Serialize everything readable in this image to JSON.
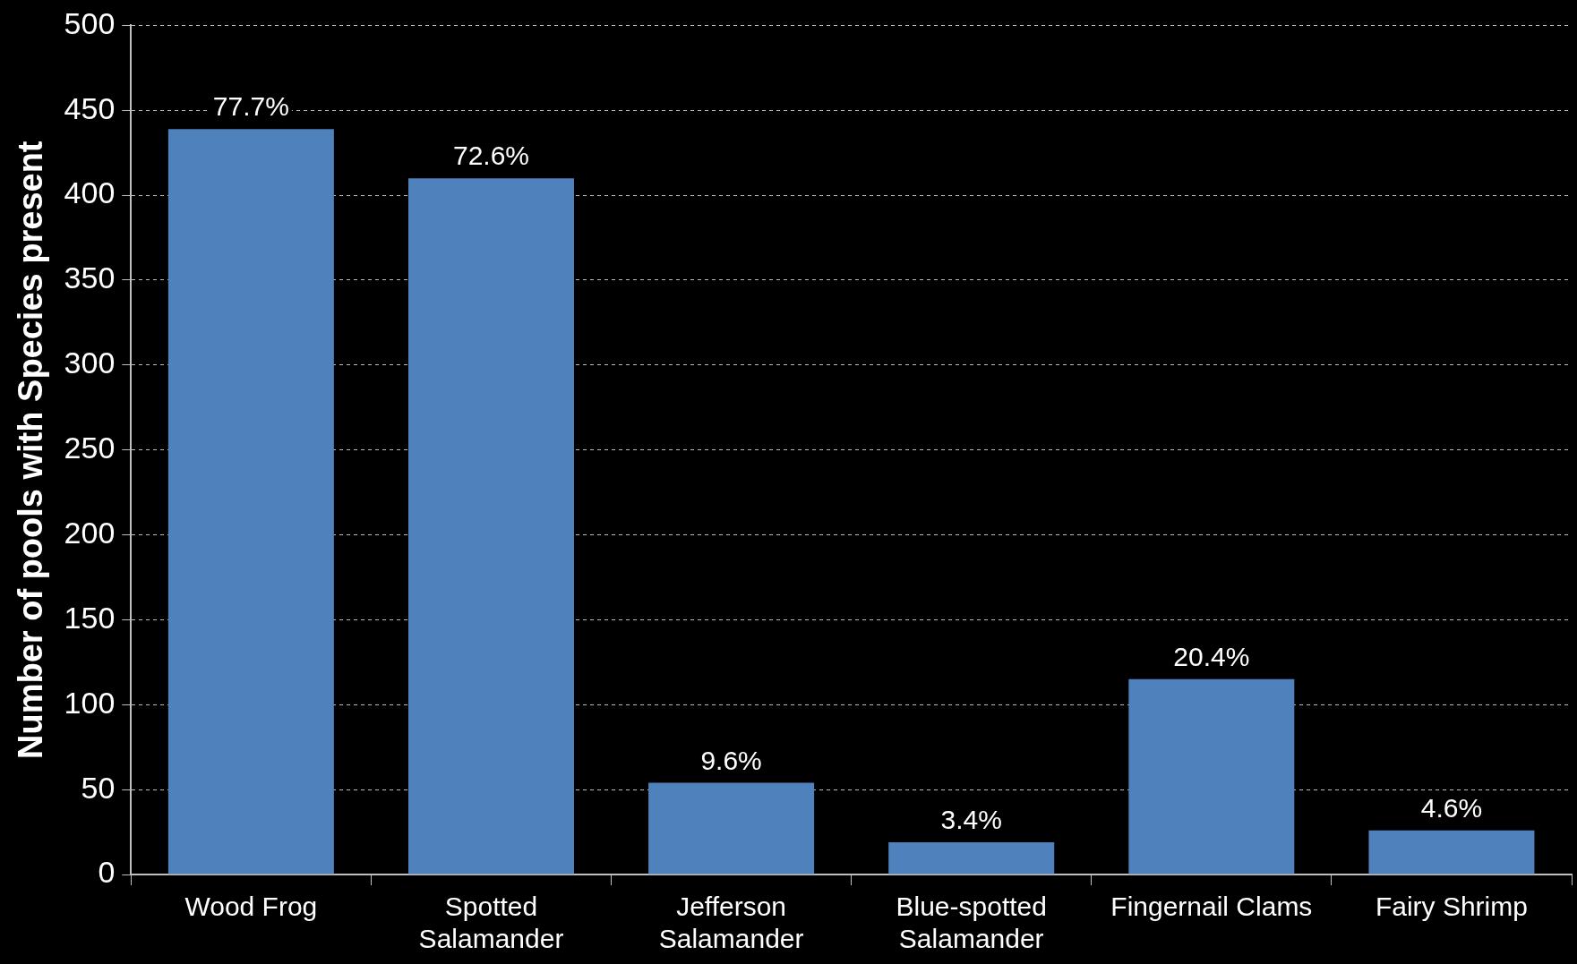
{
  "chart_data": {
    "type": "bar",
    "ylabel": "Number of pools with Species present",
    "categories": [
      "Wood Frog",
      "Spotted Salamander",
      "Jefferson Salamander",
      "Blue-spotted Salamander",
      "Fingernail Clams",
      "Fairy Shrimp"
    ],
    "values": [
      439,
      410,
      54,
      19,
      115,
      26
    ],
    "annotations": [
      {
        "text": "77.7%",
        "x": "Wood Frog",
        "y": 439
      },
      {
        "text": "72.6%",
        "x": "Spotted Salamander",
        "y": 410
      },
      {
        "text": "9.6%",
        "x": "Jefferson Salamander",
        "y": 54
      },
      {
        "text": "3.4%",
        "x": "Blue-spotted Salamander",
        "y": 19
      },
      {
        "text": "20.4%",
        "x": "Fingernail Clams",
        "y": 115
      },
      {
        "text": "4.6%",
        "x": "Fairy Shrimp",
        "y": 26
      }
    ],
    "color": "#4f81bd",
    "ylim": [
      0,
      500
    ],
    "yticks": [
      0,
      50,
      100,
      150,
      200,
      250,
      300,
      350,
      400,
      450,
      500
    ],
    "grid": "y",
    "legend": false
  }
}
